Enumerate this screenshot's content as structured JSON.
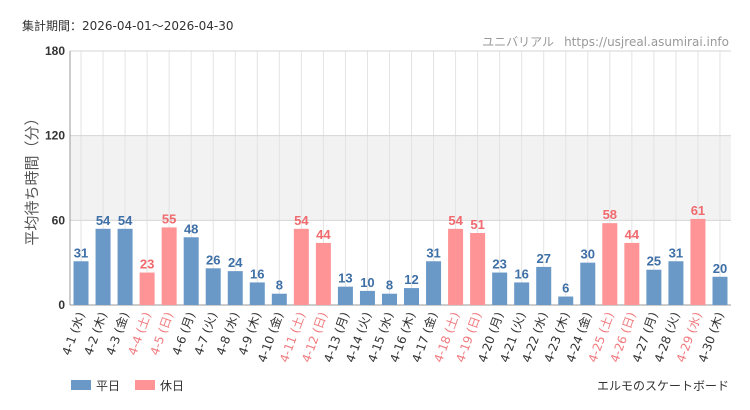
{
  "header": {
    "period_label": "集計期間：2026-04-01〜2026-04-30",
    "site_name": "ユニバリアル",
    "site_url": "https://usjreal.asumirai.info"
  },
  "footer": {
    "attraction_name": "エルモのスケートボード"
  },
  "colors": {
    "weekday": "#6A99C8",
    "holiday": "#FF9496",
    "weekday_value_text": "#3E6FA6",
    "holiday_value_text": "#F06A6E",
    "holiday_label_text": "#F07A7E",
    "band": "#F2F2F2",
    "grid": "#E3E3E3"
  },
  "chart_data": {
    "type": "bar",
    "ylabel": "平均待ち時間（分）",
    "ylim": [
      0,
      180
    ],
    "yticks": [
      "0",
      "60",
      "120",
      "180"
    ],
    "highlight_band": [
      60,
      120
    ],
    "grid": true,
    "legend_position": "bottom-left",
    "legend": [
      {
        "key": "weekday",
        "label": "平日"
      },
      {
        "key": "holiday",
        "label": "休日"
      }
    ],
    "categories": [
      {
        "label": "4-1 (水)",
        "value": 31,
        "holiday": false
      },
      {
        "label": "4-2 (木)",
        "value": 54,
        "holiday": false
      },
      {
        "label": "4-3 (金)",
        "value": 54,
        "holiday": false
      },
      {
        "label": "4-4 (土)",
        "value": 23,
        "holiday": true
      },
      {
        "label": "4-5 (日)",
        "value": 55,
        "holiday": true
      },
      {
        "label": "4-6 (月)",
        "value": 48,
        "holiday": false
      },
      {
        "label": "4-7 (火)",
        "value": 26,
        "holiday": false
      },
      {
        "label": "4-8 (水)",
        "value": 24,
        "holiday": false
      },
      {
        "label": "4-9 (木)",
        "value": 16,
        "holiday": false
      },
      {
        "label": "4-10 (金)",
        "value": 8,
        "holiday": false
      },
      {
        "label": "4-11 (土)",
        "value": 54,
        "holiday": true
      },
      {
        "label": "4-12 (日)",
        "value": 44,
        "holiday": true
      },
      {
        "label": "4-13 (月)",
        "value": 13,
        "holiday": false
      },
      {
        "label": "4-14 (火)",
        "value": 10,
        "holiday": false
      },
      {
        "label": "4-15 (水)",
        "value": 8,
        "holiday": false
      },
      {
        "label": "4-16 (木)",
        "value": 12,
        "holiday": false
      },
      {
        "label": "4-17 (金)",
        "value": 31,
        "holiday": false
      },
      {
        "label": "4-18 (土)",
        "value": 54,
        "holiday": true
      },
      {
        "label": "4-19 (日)",
        "value": 51,
        "holiday": true
      },
      {
        "label": "4-20 (月)",
        "value": 23,
        "holiday": false
      },
      {
        "label": "4-21 (火)",
        "value": 16,
        "holiday": false
      },
      {
        "label": "4-22 (水)",
        "value": 27,
        "holiday": false
      },
      {
        "label": "4-23 (木)",
        "value": 6,
        "holiday": false
      },
      {
        "label": "4-24 (金)",
        "value": 30,
        "holiday": false
      },
      {
        "label": "4-25 (土)",
        "value": 58,
        "holiday": true
      },
      {
        "label": "4-26 (日)",
        "value": 44,
        "holiday": true
      },
      {
        "label": "4-27 (月)",
        "value": 25,
        "holiday": false
      },
      {
        "label": "4-28 (火)",
        "value": 31,
        "holiday": false
      },
      {
        "label": "4-29 (水)",
        "value": 61,
        "holiday": true
      },
      {
        "label": "4-30 (木)",
        "value": 20,
        "holiday": false
      }
    ]
  }
}
